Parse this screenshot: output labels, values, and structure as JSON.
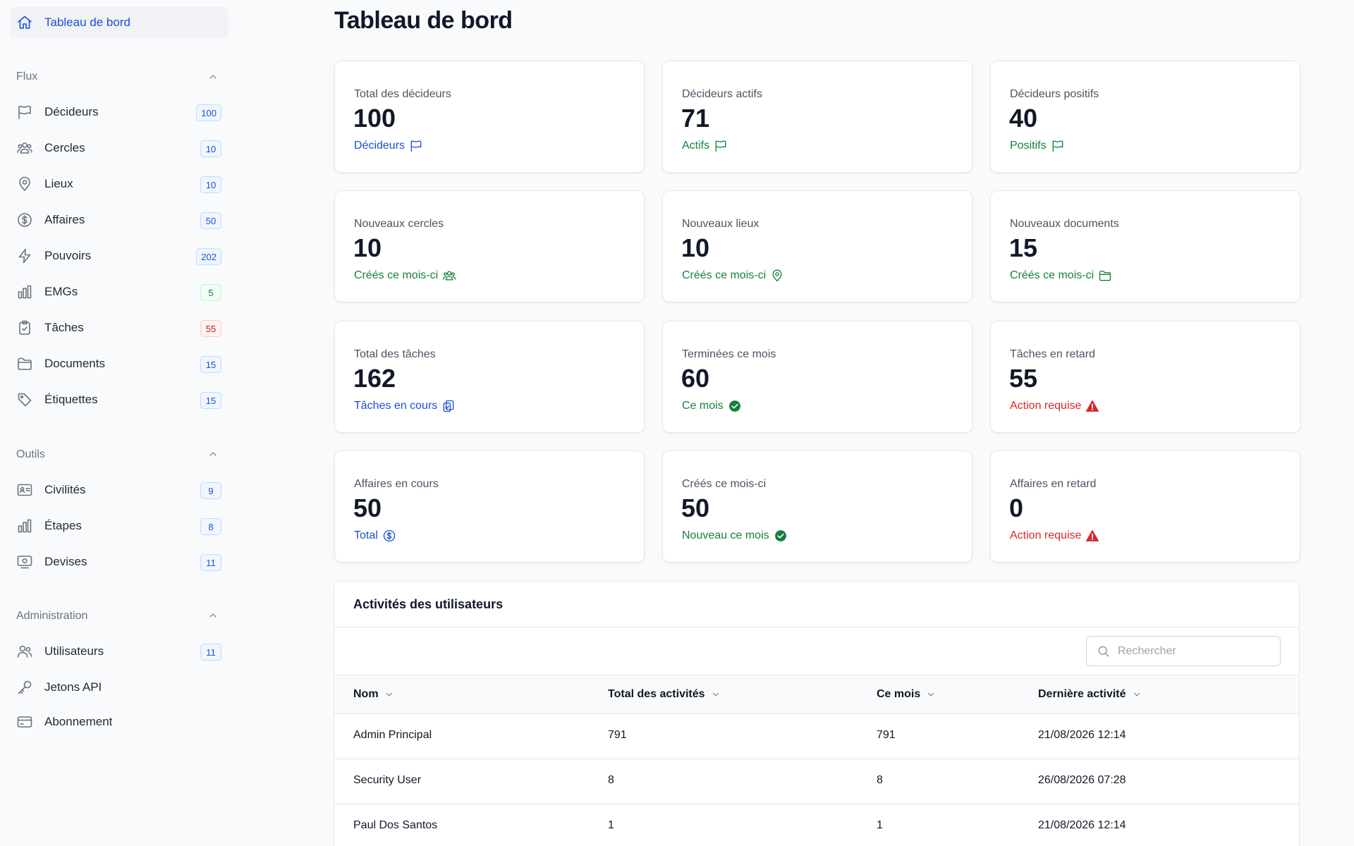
{
  "page_title": "Tableau de bord",
  "sidebar": {
    "home": {
      "label": "Tableau de bord",
      "icon": "home-icon"
    },
    "sections": [
      {
        "title": "Flux",
        "items": [
          {
            "label": "Décideurs",
            "count": "100",
            "icon": "flag-icon",
            "badge": "blue"
          },
          {
            "label": "Cercles",
            "count": "10",
            "icon": "users-group-icon",
            "badge": "blue"
          },
          {
            "label": "Lieux",
            "count": "10",
            "icon": "map-pin-icon",
            "badge": "blue"
          },
          {
            "label": "Affaires",
            "count": "50",
            "icon": "dollar-circle-icon",
            "badge": "blue"
          },
          {
            "label": "Pouvoirs",
            "count": "202",
            "icon": "bolt-icon",
            "badge": "blue"
          },
          {
            "label": "EMGs",
            "count": "5",
            "icon": "bar-chart-icon",
            "badge": "green"
          },
          {
            "label": "Tâches",
            "count": "55",
            "icon": "clipboard-check-icon",
            "badge": "red"
          },
          {
            "label": "Documents",
            "count": "15",
            "icon": "folder-icon",
            "badge": "blue"
          },
          {
            "label": "Étiquettes",
            "count": "15",
            "icon": "tag-icon",
            "badge": "blue"
          }
        ]
      },
      {
        "title": "Outils",
        "items": [
          {
            "label": "Civilités",
            "count": "9",
            "icon": "id-card-icon",
            "badge": "blue"
          },
          {
            "label": "Étapes",
            "count": "8",
            "icon": "bar-chart-icon",
            "badge": "blue"
          },
          {
            "label": "Devises",
            "count": "11",
            "icon": "banknote-icon",
            "badge": "blue"
          }
        ]
      },
      {
        "title": "Administration",
        "items": [
          {
            "label": "Utilisateurs",
            "count": "11",
            "icon": "users-icon",
            "badge": "blue"
          },
          {
            "label": "Jetons API",
            "count": "",
            "icon": "key-icon",
            "badge": ""
          },
          {
            "label": "Abonnement",
            "count": "",
            "icon": "credit-card-icon",
            "badge": ""
          }
        ]
      }
    ]
  },
  "cards": [
    {
      "label": "Total des décideurs",
      "value": "100",
      "sub": "Décideurs",
      "color": "blue",
      "icon": "flag-icon"
    },
    {
      "label": "Décideurs actifs",
      "value": "71",
      "sub": "Actifs",
      "color": "green",
      "icon": "flag-icon"
    },
    {
      "label": "Décideurs positifs",
      "value": "40",
      "sub": "Positifs",
      "color": "green",
      "icon": "flag-icon"
    },
    {
      "label": "Nouveaux cercles",
      "value": "10",
      "sub": "Créés ce mois-ci",
      "color": "green",
      "icon": "users-group-icon"
    },
    {
      "label": "Nouveaux lieux",
      "value": "10",
      "sub": "Créés ce mois-ci",
      "color": "green",
      "icon": "map-pin-icon"
    },
    {
      "label": "Nouveaux documents",
      "value": "15",
      "sub": "Créés ce mois-ci",
      "color": "green",
      "icon": "folder-icon"
    },
    {
      "label": "Total des tâches",
      "value": "162",
      "sub": "Tâches en cours",
      "color": "blue",
      "icon": "clipboard-copy-icon"
    },
    {
      "label": "Terminées ce mois",
      "value": "60",
      "sub": "Ce mois",
      "color": "green",
      "icon": "check-circle-icon"
    },
    {
      "label": "Tâches en retard",
      "value": "55",
      "sub": "Action requise",
      "color": "red",
      "icon": "warning-triangle-icon"
    },
    {
      "label": "Affaires en cours",
      "value": "50",
      "sub": "Total",
      "color": "blue",
      "icon": "dollar-circle-icon"
    },
    {
      "label": "Créés ce mois-ci",
      "value": "50",
      "sub": "Nouveau ce mois",
      "color": "green",
      "icon": "check-circle-icon"
    },
    {
      "label": "Affaires en retard",
      "value": "0",
      "sub": "Action requise",
      "color": "red",
      "icon": "warning-triangle-icon"
    }
  ],
  "activities": {
    "title": "Activités des utilisateurs",
    "search_placeholder": "Rechercher",
    "columns": [
      "Nom",
      "Total des activités",
      "Ce mois",
      "Dernière activité"
    ],
    "rows": [
      [
        "Admin Principal",
        "791",
        "791",
        "21/08/2026 12:14"
      ],
      [
        "Security User",
        "8",
        "8",
        "26/08/2026 07:28"
      ],
      [
        "Paul Dos Santos",
        "1",
        "1",
        "21/08/2026 12:14"
      ]
    ]
  },
  "colors": {
    "accent": "#1d4ed8",
    "success": "#15803d",
    "danger": "#dc2626",
    "muted": "#6b7280"
  }
}
